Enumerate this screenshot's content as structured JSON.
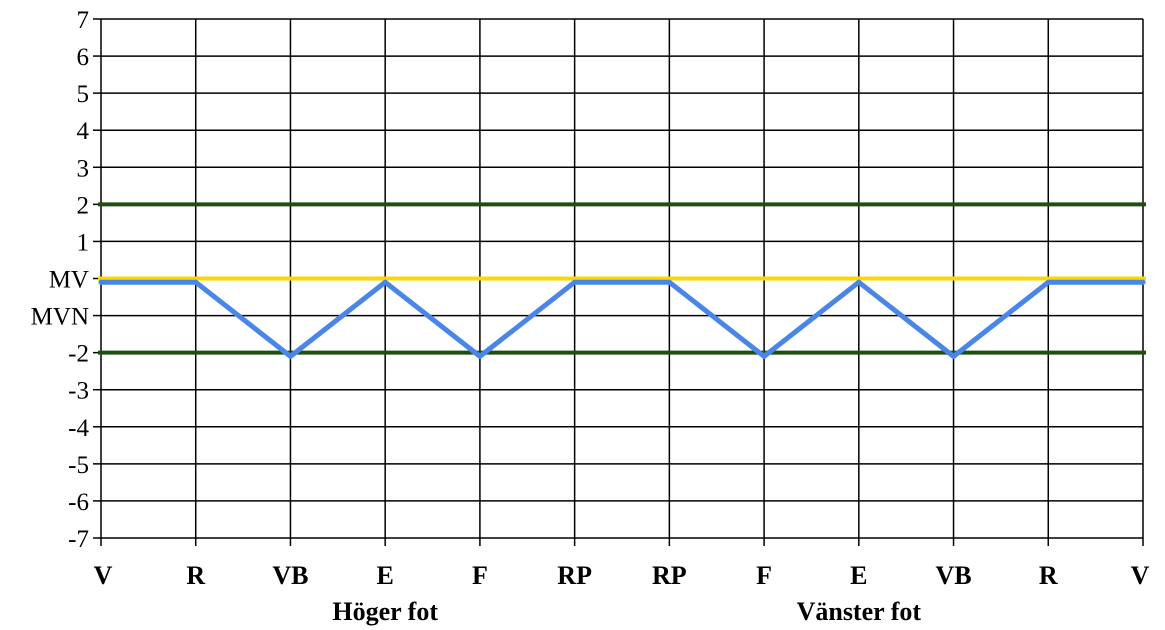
{
  "chart_data": {
    "type": "line",
    "categories": [
      "V",
      "R",
      "VB",
      "E",
      "F",
      "RP",
      "RP",
      "F",
      "E",
      "VB",
      "R",
      "V"
    ],
    "y_tick_labels": [
      {
        "value": 7,
        "label": "7"
      },
      {
        "value": 6,
        "label": "6"
      },
      {
        "value": 5,
        "label": "5"
      },
      {
        "value": 4,
        "label": "4"
      },
      {
        "value": 3,
        "label": "3"
      },
      {
        "value": 2,
        "label": "2"
      },
      {
        "value": 1,
        "label": "1"
      },
      {
        "value": 0,
        "label": "MV"
      },
      {
        "value": -1,
        "label": "MVN"
      },
      {
        "value": -2,
        "label": "-2"
      },
      {
        "value": -3,
        "label": "-3"
      },
      {
        "value": -4,
        "label": "-4"
      },
      {
        "value": -5,
        "label": "-5"
      },
      {
        "value": -6,
        "label": "-6"
      },
      {
        "value": -7,
        "label": "-7"
      }
    ],
    "ylim": [
      -7,
      7
    ],
    "grid": true,
    "group_labels": [
      {
        "text": "Höger fot",
        "center_index": 3
      },
      {
        "text": "Vänster fot",
        "center_index": 8
      }
    ],
    "reference_lines": [
      {
        "value": 2,
        "color": "#1f4e12"
      },
      {
        "value": 0,
        "color": "#ffd700"
      },
      {
        "value": -2,
        "color": "#1f4e12"
      }
    ],
    "series": [
      {
        "values": [
          -0.1,
          -0.1,
          -2.1,
          -0.1,
          -2.1,
          -0.1,
          -0.1,
          -2.1,
          -0.1,
          -2.1,
          -0.1,
          -0.1
        ],
        "color": "#4a86e8"
      }
    ]
  }
}
